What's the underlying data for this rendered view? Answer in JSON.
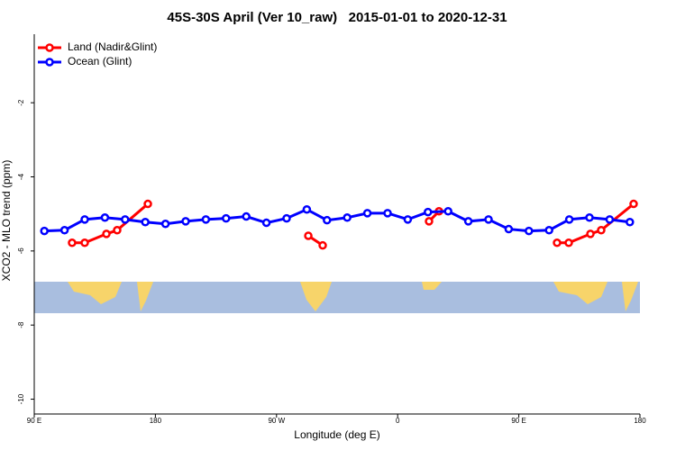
{
  "chart_data": {
    "type": "line",
    "title": "45S-30S April (Ver 10_raw)   2015-01-01 to 2020-12-31",
    "xlabel": "Longitude (deg E)",
    "ylabel": "XCO2 - MLO trend (ppm)",
    "xlim": [
      90,
      540
    ],
    "xticks": [
      {
        "value": 90,
        "label": "90 E"
      },
      {
        "value": 180,
        "label": "180"
      },
      {
        "value": 270,
        "label": "90 W"
      },
      {
        "value": 360,
        "label": "0"
      },
      {
        "value": 450,
        "label": "90 E"
      },
      {
        "value": 540,
        "label": "180"
      }
    ],
    "ylim": [
      -10.4,
      -0.15
    ],
    "yticks": [
      -10,
      -8,
      -6,
      -4,
      -2
    ],
    "legend": "top-left",
    "series": [
      {
        "name": "Land (Nadir&Glint)",
        "color": "#ff0000",
        "x": [
          118.1,
          127.5,
          143.6,
          151.6,
          174.4,
          null,
          293.6,
          304.3,
          null,
          383.3,
          390.7,
          null,
          478.4,
          487.1,
          503.2,
          511.2,
          535.3
        ],
        "values": [
          -5.78,
          -5.78,
          -5.54,
          -5.44,
          -4.73,
          null,
          -5.59,
          -5.85,
          null,
          -5.2,
          -4.93,
          null,
          -5.78,
          -5.78,
          -5.54,
          -5.44,
          -4.73
        ]
      },
      {
        "name": "Ocean (Glint)",
        "color": "#0000ff",
        "x": [
          97.5,
          112.5,
          127.5,
          142.5,
          157.5,
          172.5,
          187.5,
          202.5,
          217.5,
          232.5,
          247.5,
          262.5,
          277.5,
          292.5,
          307.5,
          322.5,
          337.5,
          352.5,
          367.5,
          382.5,
          397.5,
          412.5,
          427.5,
          442.5,
          457.5,
          472.5,
          487.5,
          502.5,
          517.5,
          532.5
        ],
        "values": [
          -5.46,
          -5.44,
          -5.15,
          -5.1,
          -5.15,
          -5.22,
          -5.27,
          -5.2,
          -5.15,
          -5.12,
          -5.07,
          -5.24,
          -5.12,
          -4.88,
          -5.17,
          -5.1,
          -4.98,
          -4.98,
          -5.15,
          -4.95,
          -4.93,
          -5.2,
          -5.15,
          -5.41,
          -5.46,
          -5.44,
          -5.15,
          -5.1,
          -5.15,
          -5.22
        ]
      }
    ]
  }
}
